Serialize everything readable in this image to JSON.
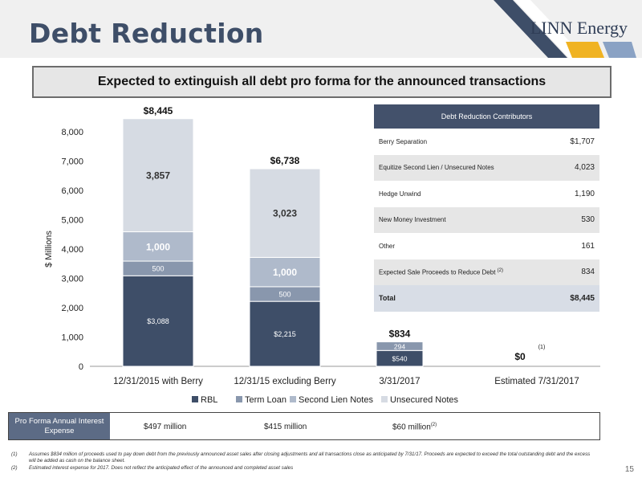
{
  "page": {
    "title": "Debt Reduction",
    "brand": "LINN Energy",
    "subtitle": "Expected to extinguish all debt pro forma for the announced transactions",
    "page_number": "15"
  },
  "chart_data": {
    "type": "bar",
    "stacked": true,
    "ylabel": "$ Millions",
    "ylim": [
      0,
      8000
    ],
    "yticks": [
      "0",
      "1,000",
      "2,000",
      "3,000",
      "4,000",
      "5,000",
      "6,000",
      "7,000",
      "8,000"
    ],
    "categories": [
      "12/31/2015 with Berry",
      "12/31/15 excluding Berry",
      "3/31/2017",
      "Estimated 7/31/2017"
    ],
    "series": [
      {
        "name": "RBL",
        "color": "#3e4e68",
        "values": [
          3088,
          2215,
          540,
          0
        ],
        "labels": [
          "$3,088",
          "$2,215",
          "$540",
          ""
        ]
      },
      {
        "name": "Term Loan",
        "color": "#8997ad",
        "values": [
          500,
          500,
          294,
          0
        ],
        "labels": [
          "500",
          "500",
          "294",
          ""
        ]
      },
      {
        "name": "Second Lien Notes",
        "color": "#afbacb",
        "values": [
          1000,
          1000,
          0,
          0
        ],
        "labels": [
          "1,000",
          "1,000",
          "",
          ""
        ]
      },
      {
        "name": "Unsecured Notes",
        "color": "#d6dbe3",
        "values": [
          3857,
          3023,
          0,
          0
        ],
        "labels": [
          "3,857",
          "3,023",
          "",
          ""
        ]
      }
    ],
    "totals": [
      "$8,445",
      "$6,738",
      "$834",
      "$0"
    ],
    "totals_values": [
      8445,
      6738,
      834,
      0
    ],
    "annotation": "(1)",
    "legend_position": "bottom"
  },
  "contributors": {
    "header": "Debt Reduction Contributors",
    "rows": [
      {
        "label": "Berry Separation",
        "value": "$1,707"
      },
      {
        "label": "Equitize Second Lien / Unsecured Notes",
        "value": "4,023"
      },
      {
        "label": "Hedge Unwind",
        "value": "1,190"
      },
      {
        "label": "New Money Investment",
        "value": "530"
      },
      {
        "label": "Other",
        "value": "161"
      },
      {
        "label": "Expected Sale Proceeds to Reduce Debt",
        "sup": "(2)",
        "value": "834"
      }
    ],
    "total": {
      "label": "Total",
      "value": "$8,445"
    }
  },
  "interest": {
    "label": "Pro Forma Annual Interest Expense",
    "values": [
      "$497 million",
      "$415 million",
      "$60 million"
    ],
    "last_sup": "(2)"
  },
  "footnotes": [
    {
      "n": "(1)",
      "text": "Assumes $834 million of proceeds used to pay down debt from the previously announced asset sales after closing adjustments and all transactions close as anticipated by 7/31/17. Proceeds are expected to exceed the total outstanding debt and the excess will be added as cash on the balance sheet."
    },
    {
      "n": "(2)",
      "text": "Estimated interest expense for 2017. Does not reflect the anticipated effect of the announced and completed asset sales"
    }
  ]
}
